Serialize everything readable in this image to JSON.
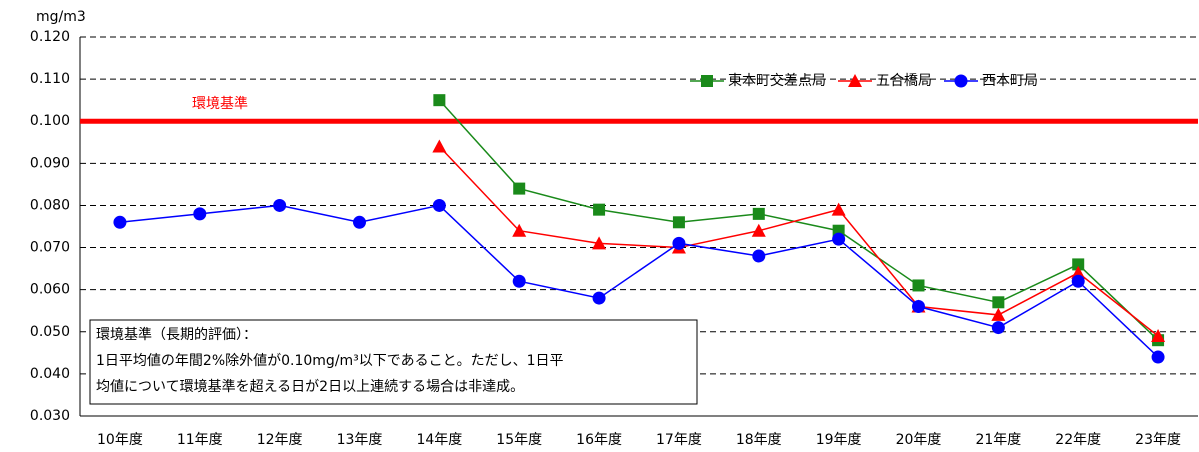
{
  "chart_data": {
    "type": "line",
    "y_unit_label": "mg/m3",
    "categories": [
      "10年度",
      "11年度",
      "12年度",
      "13年度",
      "14年度",
      "15年度",
      "16年度",
      "17年度",
      "18年度",
      "19年度",
      "20年度",
      "21年度",
      "22年度",
      "23年度"
    ],
    "series": [
      {
        "name": "東本町交差点局",
        "color": "#1a8a1a",
        "marker": "square",
        "values": [
          null,
          null,
          null,
          null,
          0.105,
          0.084,
          0.079,
          0.076,
          0.078,
          0.074,
          0.061,
          0.057,
          0.066,
          0.048
        ]
      },
      {
        "name": "五合橋局",
        "color": "#ff0000",
        "marker": "triangle",
        "values": [
          null,
          null,
          null,
          null,
          0.094,
          0.074,
          0.071,
          0.07,
          0.074,
          0.079,
          0.056,
          0.054,
          0.064,
          0.049
        ]
      },
      {
        "name": "西本町局",
        "color": "#0000ff",
        "marker": "circle",
        "values": [
          0.076,
          0.078,
          0.08,
          0.076,
          0.08,
          0.062,
          0.058,
          0.071,
          0.068,
          0.072,
          0.056,
          0.051,
          0.062,
          0.044
        ]
      }
    ],
    "ylim": [
      0.03,
      0.12
    ],
    "yticks": [
      {
        "value": 0.03,
        "label": "0.030"
      },
      {
        "value": 0.04,
        "label": "0.040"
      },
      {
        "value": 0.05,
        "label": "0.050"
      },
      {
        "value": 0.06,
        "label": "0.060"
      },
      {
        "value": 0.07,
        "label": "0.070"
      },
      {
        "value": 0.08,
        "label": "0.080"
      },
      {
        "value": 0.09,
        "label": "0.090"
      },
      {
        "value": 0.1,
        "label": "0.100"
      },
      {
        "value": 0.11,
        "label": "0.110"
      },
      {
        "value": 0.12,
        "label": "0.120"
      }
    ],
    "grid": true,
    "legend": "top-right",
    "reference_line": {
      "label": "環境基準",
      "value": 0.1,
      "color": "#ff0000"
    },
    "annotation": [
      "環境基準（長期的評価）：",
      "1日平均値の年間2%除外値が0.10mg/m³以下であること。ただし、1日平",
      "均値について環境基準を超える日が2日以上連続する場合は非達成。"
    ]
  }
}
